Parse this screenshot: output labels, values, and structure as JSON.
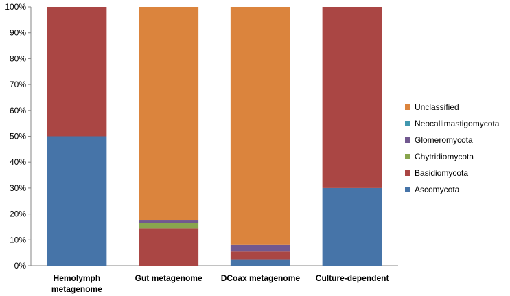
{
  "chart_data": {
    "type": "bar",
    "stacked": true,
    "percent": true,
    "categories": [
      [
        "Hemolymph",
        "metagenome"
      ],
      [
        "Gut metagenome"
      ],
      [
        "DCoax metagenome"
      ],
      [
        "Culture-dependent"
      ]
    ],
    "series": [
      {
        "name": "Ascomycota",
        "color": "#4674A8",
        "values": [
          50,
          0,
          2.5,
          30
        ]
      },
      {
        "name": "Basidiomycota",
        "color": "#AA4644",
        "values": [
          50,
          14.5,
          3,
          70
        ]
      },
      {
        "name": "Chytridiomycota",
        "color": "#89A54E",
        "values": [
          0,
          2,
          0,
          0
        ]
      },
      {
        "name": "Glomeromycota",
        "color": "#71588F",
        "values": [
          0,
          1,
          2.5,
          0
        ]
      },
      {
        "name": "Neocallimastigomycota",
        "color": "#4198AF",
        "values": [
          0,
          0,
          0,
          0
        ]
      },
      {
        "name": "Unclassified",
        "color": "#DB843D",
        "values": [
          0,
          82.5,
          92,
          0
        ]
      }
    ],
    "ylim": [
      0,
      100
    ],
    "yticks": [
      "0%",
      "10%",
      "20%",
      "30%",
      "40%",
      "50%",
      "60%",
      "70%",
      "80%",
      "90%",
      "100%"
    ],
    "grid": false,
    "legend": "right",
    "legend_order": [
      "Unclassified",
      "Neocallimastigomycota",
      "Glomeromycota",
      "Chytridiomycota",
      "Basidiomycota",
      "Ascomycota"
    ]
  }
}
